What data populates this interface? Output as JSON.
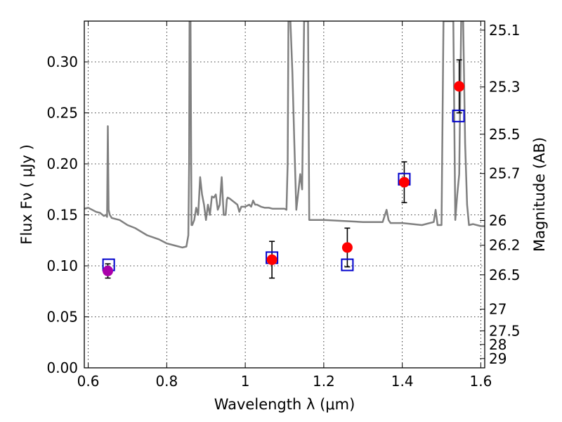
{
  "chart_data": {
    "type": "scatter",
    "xlabel": "Wavelength  λ (μm)",
    "ylabel": "Flux  Fν  ( μJy )",
    "y2label": "Magnitude (AB)",
    "xlim": [
      0.59,
      1.61
    ],
    "ylim": [
      0.0,
      0.34
    ],
    "grid": true,
    "x_ticks": [
      {
        "value": 0.6,
        "label": "0.6"
      },
      {
        "value": 0.8,
        "label": "0.8"
      },
      {
        "value": 1.0,
        "label": "1"
      },
      {
        "value": 1.2,
        "label": "1.2"
      },
      {
        "value": 1.4,
        "label": "1.4"
      },
      {
        "value": 1.6,
        "label": "1.6"
      }
    ],
    "y_ticks": [
      {
        "value": 0.0,
        "label": "0.00"
      },
      {
        "value": 0.05,
        "label": "0.05"
      },
      {
        "value": 0.1,
        "label": "0.10"
      },
      {
        "value": 0.15,
        "label": "0.15"
      },
      {
        "value": 0.2,
        "label": "0.20"
      },
      {
        "value": 0.25,
        "label": "0.25"
      },
      {
        "value": 0.3,
        "label": "0.30"
      }
    ],
    "y2_ticks": [
      {
        "mag": 25.1,
        "label": "25.1"
      },
      {
        "mag": 25.3,
        "label": "25.3"
      },
      {
        "mag": 25.5,
        "label": "25.5"
      },
      {
        "mag": 25.7,
        "label": "25.7"
      },
      {
        "mag": 26.0,
        "label": "26"
      },
      {
        "mag": 26.2,
        "label": "26.2"
      },
      {
        "mag": 26.5,
        "label": "26.5"
      },
      {
        "mag": 27.0,
        "label": "27"
      },
      {
        "mag": 27.5,
        "label": "27.5"
      },
      {
        "mag": 28.0,
        "label": "28"
      },
      {
        "mag": 29.0,
        "label": "29"
      }
    ],
    "colors": {
      "spectrum": "#808080",
      "observed": "#ff0000",
      "observed_special": "#aa00aa",
      "model": "#0000cc",
      "errorbar": "#000000"
    },
    "series": [
      {
        "kind": "line",
        "x": [
          0.59,
          0.6,
          0.62,
          0.63,
          0.64,
          0.645,
          0.648,
          0.65,
          0.652,
          0.655,
          0.66,
          0.68,
          0.7,
          0.72,
          0.75,
          0.78,
          0.8,
          0.82,
          0.84,
          0.85,
          0.855,
          0.857,
          0.858,
          0.8605,
          0.862,
          0.863,
          0.865,
          0.87,
          0.875,
          0.88,
          0.885,
          0.89,
          0.895,
          0.9,
          0.905,
          0.91,
          0.915,
          0.92,
          0.925,
          0.93,
          0.935,
          0.94,
          0.945,
          0.948,
          0.95,
          0.953,
          0.955,
          0.96,
          0.97,
          0.98,
          0.985,
          0.99,
          1.0,
          1.01,
          1.015,
          1.02,
          1.025,
          1.03,
          1.04,
          1.05,
          1.06,
          1.07,
          1.08,
          1.09,
          1.1,
          1.105,
          1.108,
          1.11,
          1.112,
          1.115,
          1.12,
          1.125,
          1.13,
          1.135,
          1.14,
          1.145,
          1.15,
          1.155,
          1.16,
          1.163,
          1.2,
          1.3,
          1.35,
          1.36,
          1.365,
          1.37,
          1.4,
          1.45,
          1.48,
          1.485,
          1.49,
          1.5,
          1.505,
          1.51,
          1.52,
          1.53,
          1.535,
          1.54,
          1.545,
          1.55,
          1.555,
          1.56,
          1.565,
          1.57,
          1.58,
          1.6,
          1.61
        ],
        "y": [
          0.156,
          0.157,
          0.153,
          0.152,
          0.149,
          0.15,
          0.148,
          0.237,
          0.155,
          0.15,
          0.147,
          0.145,
          0.14,
          0.137,
          0.13,
          0.126,
          0.122,
          0.12,
          0.118,
          0.119,
          0.13,
          0.2,
          0.34,
          0.34,
          0.22,
          0.14,
          0.14,
          0.145,
          0.157,
          0.15,
          0.187,
          0.17,
          0.16,
          0.145,
          0.16,
          0.15,
          0.168,
          0.167,
          0.17,
          0.155,
          0.16,
          0.187,
          0.15,
          0.15,
          0.15,
          0.165,
          0.167,
          0.166,
          0.163,
          0.16,
          0.153,
          0.158,
          0.158,
          0.16,
          0.158,
          0.164,
          0.16,
          0.16,
          0.158,
          0.157,
          0.157,
          0.156,
          0.156,
          0.156,
          0.156,
          0.155,
          0.2,
          0.34,
          0.34,
          0.34,
          0.29,
          0.22,
          0.155,
          0.172,
          0.19,
          0.175,
          0.34,
          0.34,
          0.34,
          0.145,
          0.145,
          0.143,
          0.143,
          0.155,
          0.145,
          0.142,
          0.142,
          0.14,
          0.143,
          0.155,
          0.14,
          0.14,
          0.34,
          0.34,
          0.34,
          0.34,
          0.145,
          0.17,
          0.19,
          0.34,
          0.34,
          0.22,
          0.16,
          0.14,
          0.141,
          0.139,
          0.139
        ]
      },
      {
        "kind": "errorbar",
        "points": [
          {
            "x": 0.65,
            "y": 0.095,
            "err": 0.007,
            "special": true
          },
          {
            "x": 1.068,
            "y": 0.106,
            "err": 0.018
          },
          {
            "x": 1.26,
            "y": 0.118,
            "err": 0.019
          },
          {
            "x": 1.405,
            "y": 0.182,
            "err": 0.02
          },
          {
            "x": 1.545,
            "y": 0.276,
            "err": 0.026
          }
        ]
      },
      {
        "kind": "model",
        "points": [
          {
            "x": 0.652,
            "y": 0.101
          },
          {
            "x": 1.068,
            "y": 0.108
          },
          {
            "x": 1.26,
            "y": 0.101
          },
          {
            "x": 1.405,
            "y": 0.185
          },
          {
            "x": 1.543,
            "y": 0.247
          }
        ]
      }
    ]
  }
}
